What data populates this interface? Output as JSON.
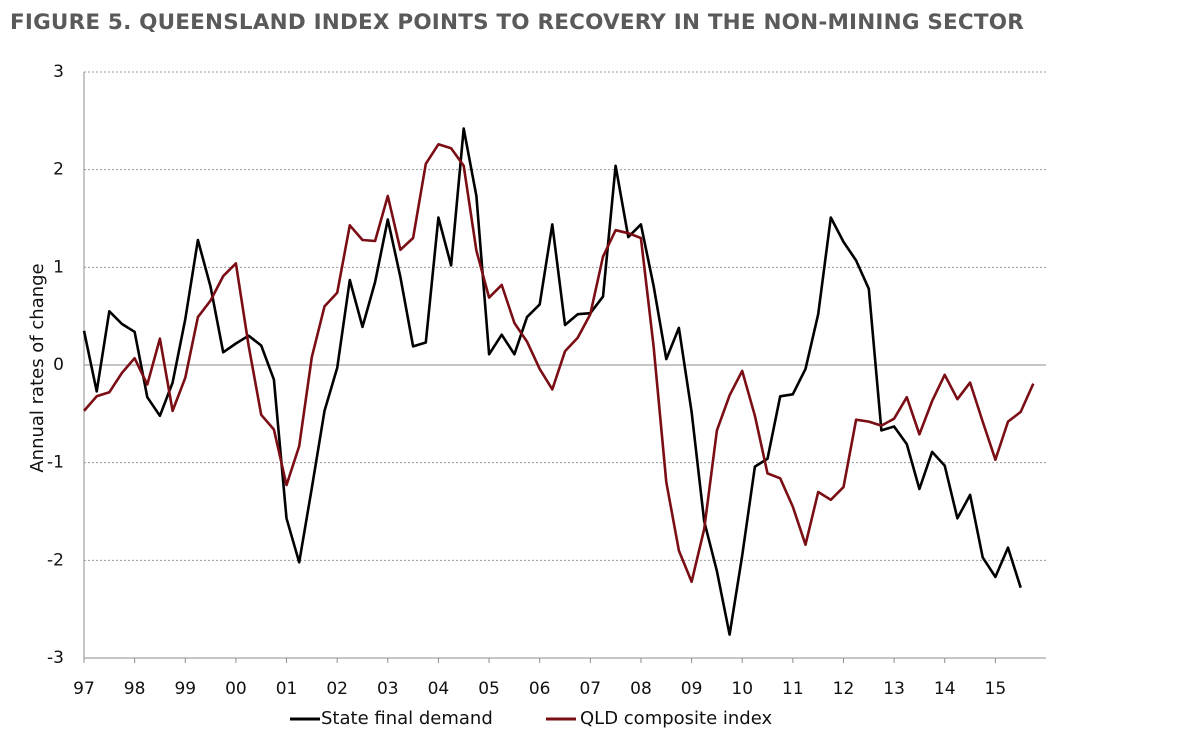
{
  "chart_data": {
    "type": "line",
    "title": "FIGURE 5. QUEENSLAND INDEX POINTS TO RECOVERY IN THE NON-MINING SECTOR",
    "ylabel": "Annual rates of change",
    "xlabel": "",
    "ylim": [
      -3,
      3
    ],
    "y_ticks": [
      "3",
      "2",
      "1",
      "0",
      "-1",
      "-2",
      "-3"
    ],
    "x_ticks": [
      "97",
      "98",
      "99",
      "00",
      "01",
      "02",
      "03",
      "04",
      "05",
      "06",
      "07",
      "08",
      "09",
      "10",
      "11",
      "12",
      "13",
      "14",
      "15"
    ],
    "grid": "horizontal",
    "legend": "bottom",
    "series": [
      {
        "name": "State final demand",
        "color": "#000000",
        "x": [
          1997.0,
          1997.25,
          1997.5,
          1997.75,
          1998.0,
          1998.25,
          1998.5,
          1998.75,
          1999.0,
          1999.25,
          1999.5,
          1999.75,
          2000.0,
          2000.25,
          2000.5,
          2000.75,
          2001.0,
          2001.25,
          2001.5,
          2001.75,
          2002.0,
          2002.25,
          2002.5,
          2002.75,
          2003.0,
          2003.25,
          2003.5,
          2003.75,
          2004.0,
          2004.25,
          2004.5,
          2004.75,
          2005.0,
          2005.25,
          2005.5,
          2005.75,
          2006.0,
          2006.25,
          2006.5,
          2006.75,
          2007.0,
          2007.25,
          2007.5,
          2007.75,
          2008.0,
          2008.25,
          2008.5,
          2008.75,
          2009.0,
          2009.25,
          2009.5,
          2009.75,
          2010.0,
          2010.25,
          2010.5,
          2010.75,
          2011.0,
          2011.25,
          2011.5,
          2011.75,
          2012.0,
          2012.25,
          2012.5,
          2012.75,
          2013.0,
          2013.25,
          2013.5,
          2013.75,
          2014.0,
          2014.25,
          2014.5,
          2014.75,
          2015.0,
          2015.25,
          2015.5
        ],
        "values": [
          0.35,
          -0.27,
          0.55,
          0.42,
          0.34,
          -0.33,
          -0.52,
          -0.18,
          0.47,
          1.28,
          0.8,
          0.13,
          0.22,
          0.3,
          0.2,
          -0.15,
          -1.57,
          -2.02,
          -1.26,
          -0.47,
          -0.03,
          0.87,
          0.39,
          0.85,
          1.49,
          0.9,
          0.19,
          0.23,
          1.51,
          1.02,
          2.42,
          1.73,
          0.11,
          0.31,
          0.11,
          0.49,
          0.62,
          1.44,
          0.41,
          0.52,
          0.53,
          0.7,
          2.04,
          1.31,
          1.44,
          0.81,
          0.06,
          0.38,
          -0.48,
          -1.6,
          -2.11,
          -2.76,
          -1.95,
          -1.04,
          -0.96,
          -0.32,
          -0.3,
          -0.04,
          0.52,
          1.51,
          1.26,
          1.07,
          0.78,
          -0.67,
          -0.63,
          -0.81,
          -1.27,
          -0.89,
          -1.03,
          -1.57,
          -1.33,
          -1.97,
          -2.17,
          -1.87,
          -2.28
        ]
      },
      {
        "name": "QLD composite index",
        "color": "#7a0e14",
        "x": [
          1997.0,
          1997.25,
          1997.5,
          1997.75,
          1998.0,
          1998.25,
          1998.5,
          1998.75,
          1999.0,
          1999.25,
          1999.5,
          1999.75,
          2000.0,
          2000.25,
          2000.5,
          2000.75,
          2001.0,
          2001.25,
          2001.5,
          2001.75,
          2002.0,
          2002.25,
          2002.5,
          2002.75,
          2003.0,
          2003.25,
          2003.5,
          2003.75,
          2004.0,
          2004.25,
          2004.5,
          2004.75,
          2005.0,
          2005.25,
          2005.5,
          2005.75,
          2006.0,
          2006.25,
          2006.5,
          2006.75,
          2007.0,
          2007.25,
          2007.5,
          2007.75,
          2008.0,
          2008.25,
          2008.5,
          2008.75,
          2009.0,
          2009.25,
          2009.5,
          2009.75,
          2010.0,
          2010.25,
          2010.5,
          2010.75,
          2011.0,
          2011.25,
          2011.5,
          2011.75,
          2012.0,
          2012.25,
          2012.5,
          2012.75,
          2013.0,
          2013.25,
          2013.5,
          2013.75,
          2014.0,
          2014.25,
          2014.5,
          2014.75,
          2015.0,
          2015.25,
          2015.5,
          2015.75
        ],
        "values": [
          -0.47,
          -0.32,
          -0.28,
          -0.08,
          0.07,
          -0.2,
          0.27,
          -0.47,
          -0.13,
          0.49,
          0.66,
          0.91,
          1.04,
          0.2,
          -0.51,
          -0.66,
          -1.23,
          -0.83,
          0.08,
          0.6,
          0.74,
          1.43,
          1.28,
          1.27,
          1.73,
          1.18,
          1.3,
          2.06,
          2.26,
          2.22,
          2.04,
          1.17,
          0.69,
          0.82,
          0.43,
          0.24,
          -0.04,
          -0.25,
          0.14,
          0.28,
          0.52,
          1.11,
          1.38,
          1.35,
          1.3,
          0.19,
          -1.2,
          -1.9,
          -2.22,
          -1.68,
          -0.67,
          -0.31,
          -0.06,
          -0.52,
          -1.11,
          -1.16,
          -1.45,
          -1.84,
          -1.3,
          -1.38,
          -1.25,
          -0.56,
          -0.58,
          -0.62,
          -0.55,
          -0.33,
          -0.71,
          -0.37,
          -0.1,
          -0.35,
          -0.18,
          -0.58,
          -0.97,
          -0.58,
          -0.48,
          -0.19
        ]
      }
    ]
  }
}
